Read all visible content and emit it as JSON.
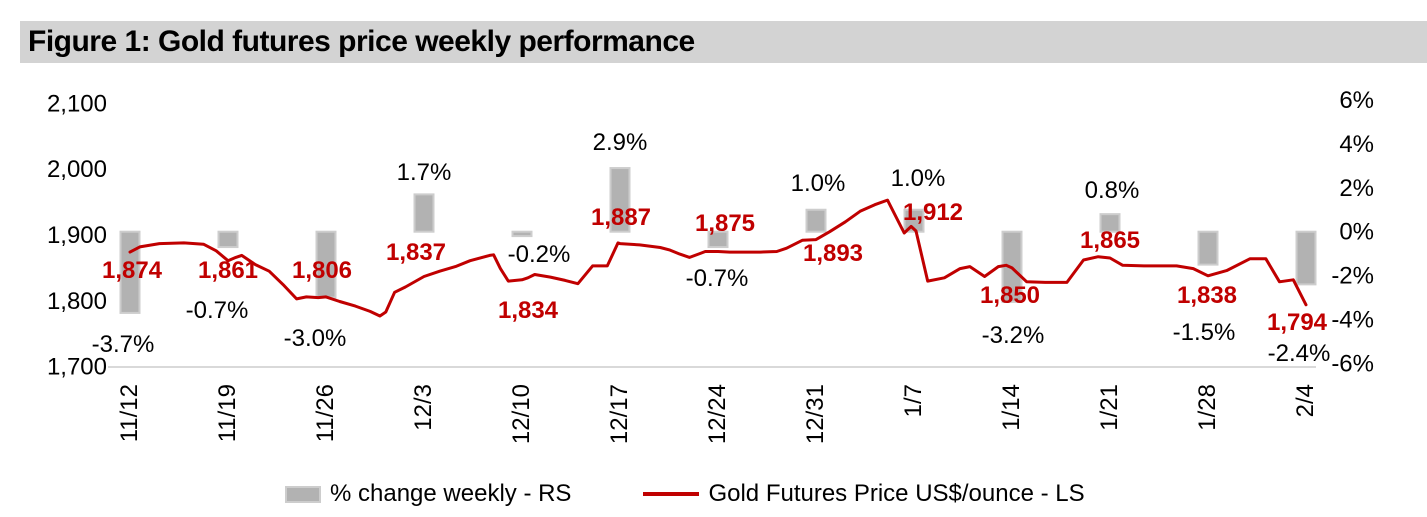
{
  "figure": {
    "title": "Figure 1: Gold futures price weekly performance"
  },
  "chart_data": {
    "type": "combo-bar-line",
    "categories": [
      "11/12",
      "11/19",
      "11/26",
      "12/3",
      "12/10",
      "12/17",
      "12/24",
      "12/31",
      "1/7",
      "1/14",
      "1/21",
      "1/28",
      "2/4"
    ],
    "series": [
      {
        "name": "% change weekly - RS",
        "type": "bar",
        "axis": "right",
        "unit": "%",
        "values": [
          -3.7,
          -0.7,
          -3.0,
          1.7,
          -0.2,
          2.9,
          -0.7,
          1.0,
          1.0,
          -3.2,
          0.8,
          -1.5,
          -2.4
        ],
        "labels": [
          "-3.7%",
          "-0.7%",
          "-3.0%",
          "1.7%",
          "-0.2%",
          "2.9%",
          "-0.7%",
          "1.0%",
          "1.0%",
          "-3.2%",
          "0.8%",
          "-1.5%",
          "-2.4%"
        ]
      },
      {
        "name": "Gold Futures Price US$/ounce - LS",
        "type": "line",
        "axis": "left",
        "unit": "US$/ounce",
        "values": [
          1874,
          1861,
          1806,
          1837,
          1834,
          1887,
          1875,
          1893,
          1912,
          1850,
          1865,
          1838,
          1794
        ],
        "labels": [
          "1,874",
          "1,861",
          "1,806",
          "1,837",
          "1,834",
          "1,887",
          "1,875",
          "1,893",
          "1,912",
          "1,850",
          "1,865",
          "1,838",
          "1,794"
        ]
      }
    ],
    "daily_line_points_week_fraction_vs_price": [
      [
        0,
        1874
      ],
      [
        0.1,
        1882
      ],
      [
        0.3,
        1887
      ],
      [
        0.55,
        1888
      ],
      [
        0.75,
        1886
      ],
      [
        0.88,
        1876
      ],
      [
        1,
        1861
      ],
      [
        1.08,
        1866
      ],
      [
        1.14,
        1869
      ],
      [
        1.28,
        1855
      ],
      [
        1.42,
        1845
      ],
      [
        1.56,
        1825
      ],
      [
        1.7,
        1803
      ],
      [
        1.8,
        1806
      ],
      [
        1.92,
        1805
      ],
      [
        2,
        1806
      ],
      [
        2.14,
        1799
      ],
      [
        2.3,
        1792
      ],
      [
        2.45,
        1784
      ],
      [
        2.55,
        1777
      ],
      [
        2.61,
        1783
      ],
      [
        2.7,
        1813
      ],
      [
        2.81,
        1821
      ],
      [
        3,
        1837
      ],
      [
        3.16,
        1845
      ],
      [
        3.32,
        1852
      ],
      [
        3.47,
        1861
      ],
      [
        3.67,
        1869
      ],
      [
        3.71,
        1870
      ],
      [
        3.78,
        1849
      ],
      [
        3.86,
        1830
      ],
      [
        4,
        1832
      ],
      [
        4.06,
        1835
      ],
      [
        4.13,
        1840
      ],
      [
        4.29,
        1836
      ],
      [
        4.44,
        1831
      ],
      [
        4.57,
        1826
      ],
      [
        4.72,
        1853
      ],
      [
        4.87,
        1853
      ],
      [
        4.98,
        1888
      ],
      [
        5,
        1887
      ],
      [
        5.2,
        1885
      ],
      [
        5.41,
        1881
      ],
      [
        5.51,
        1877
      ],
      [
        5.61,
        1871
      ],
      [
        5.71,
        1866
      ],
      [
        5.82,
        1872
      ],
      [
        5.87,
        1875
      ],
      [
        6,
        1875
      ],
      [
        6.12,
        1874
      ],
      [
        6.28,
        1874
      ],
      [
        6.43,
        1874
      ],
      [
        6.6,
        1875
      ],
      [
        6.7,
        1880
      ],
      [
        6.86,
        1892
      ],
      [
        7,
        1893
      ],
      [
        7.14,
        1905
      ],
      [
        7.3,
        1920
      ],
      [
        7.45,
        1936
      ],
      [
        7.6,
        1946
      ],
      [
        7.73,
        1953
      ],
      [
        7.9,
        1903
      ],
      [
        7.97,
        1913
      ],
      [
        8.02,
        1906
      ],
      [
        8.14,
        1830
      ],
      [
        8.31,
        1835
      ],
      [
        8.47,
        1849
      ],
      [
        8.57,
        1852
      ],
      [
        8.72,
        1837
      ],
      [
        8.86,
        1852
      ],
      [
        8.94,
        1854
      ],
      [
        9,
        1850
      ],
      [
        9.15,
        1829
      ],
      [
        9.34,
        1828
      ],
      [
        9.56,
        1828
      ],
      [
        9.73,
        1862
      ],
      [
        9.88,
        1867
      ],
      [
        10,
        1865
      ],
      [
        10.13,
        1854
      ],
      [
        10.36,
        1853
      ],
      [
        10.56,
        1853
      ],
      [
        10.68,
        1853
      ],
      [
        10.85,
        1849
      ],
      [
        11,
        1838
      ],
      [
        11.19,
        1846
      ],
      [
        11.43,
        1864
      ],
      [
        11.59,
        1864
      ],
      [
        11.73,
        1829
      ],
      [
        11.87,
        1832
      ],
      [
        12,
        1794
      ]
    ],
    "left_axis": {
      "ticks": [
        {
          "label": "2,100",
          "value": 2100
        },
        {
          "label": "2,000",
          "value": 2000
        },
        {
          "label": "1,900",
          "value": 1900
        },
        {
          "label": "1,800",
          "value": 1800
        },
        {
          "label": "1,700",
          "value": 1700
        }
      ],
      "range": [
        1700,
        2100
      ]
    },
    "right_axis": {
      "ticks": [
        {
          "label": "6%",
          "value": 6
        },
        {
          "label": "4%",
          "value": 4
        },
        {
          "label": "2%",
          "value": 2
        },
        {
          "label": "0%",
          "value": 0
        },
        {
          "label": "-2%",
          "value": -2
        },
        {
          "label": "-4%",
          "value": -4
        },
        {
          "label": "-6%",
          "value": -6
        }
      ],
      "range": [
        -6,
        6
      ]
    },
    "legend": [
      {
        "label": "% change weekly - RS",
        "swatch": "bar"
      },
      {
        "label": "Gold Futures Price US$/ounce - LS",
        "swatch": "line"
      }
    ],
    "grid": "off",
    "legend_position": "bottom",
    "colors": {
      "line": "#C00000",
      "point_label_red": "#C00000",
      "bar_fill": "#B2B2B2",
      "bar_border": "#CDCDCD",
      "axis_baseline": "#D9D9D9",
      "title_bg": "#D3D3D3",
      "text": "#000000"
    }
  }
}
